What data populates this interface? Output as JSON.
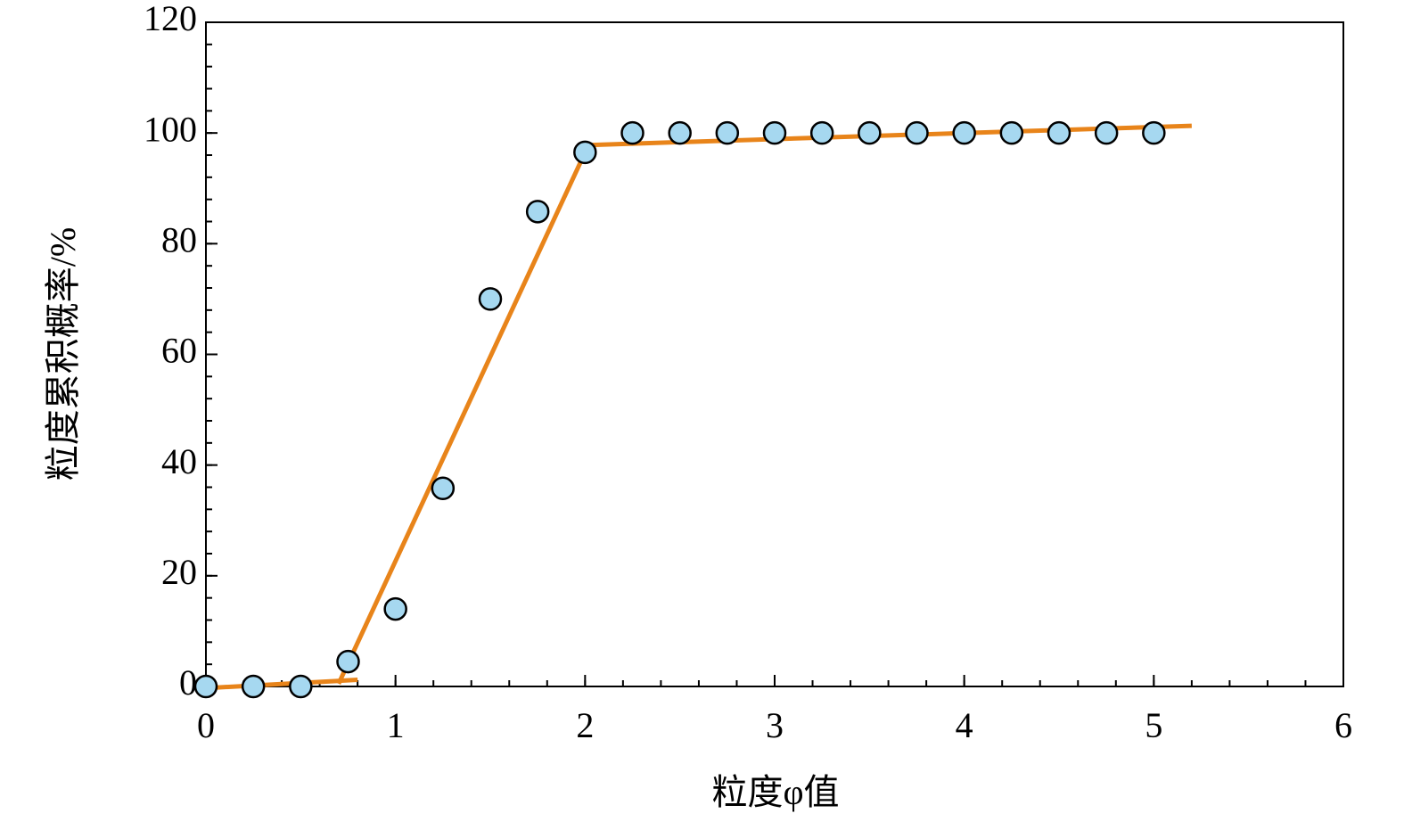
{
  "chart_data": {
    "type": "scatter",
    "xlabel": "粒度φ值",
    "ylabel": "粒度累积概率/%",
    "xlim": [
      0,
      6
    ],
    "xticks": [
      0,
      1,
      2,
      3,
      4,
      5,
      6
    ],
    "ylim": [
      0,
      120
    ],
    "yticks": [
      0,
      20,
      40,
      60,
      80,
      100,
      120
    ],
    "xminorstep": 0.2,
    "yminorstep": 4,
    "series": [
      {
        "type": "scatter",
        "color": "#a6d8f0",
        "x": [
          0,
          0.25,
          0.5,
          0.75,
          1,
          1.25,
          1.5,
          1.75,
          2,
          2.25,
          2.5,
          2.75,
          3,
          3.25,
          3.5,
          3.75,
          4,
          4.25,
          4.5,
          4.75,
          5
        ],
        "values": [
          0,
          0,
          0,
          4.5,
          14,
          35.8,
          70,
          85.8,
          96.5,
          100,
          100,
          100,
          100,
          100,
          100,
          100,
          100,
          100,
          100,
          100,
          100
        ]
      },
      {
        "type": "line",
        "color": "#e8841a",
        "x": [
          0,
          0.8
        ],
        "values": [
          -0.3,
          1.2
        ]
      },
      {
        "type": "line",
        "color": "#e8841a",
        "x": [
          0.7,
          2.0
        ],
        "values": [
          0.5,
          96.5
        ]
      },
      {
        "type": "line",
        "color": "#e8841a",
        "x": [
          2.0,
          5.2
        ],
        "values": [
          97.8,
          101.3
        ]
      }
    ]
  }
}
